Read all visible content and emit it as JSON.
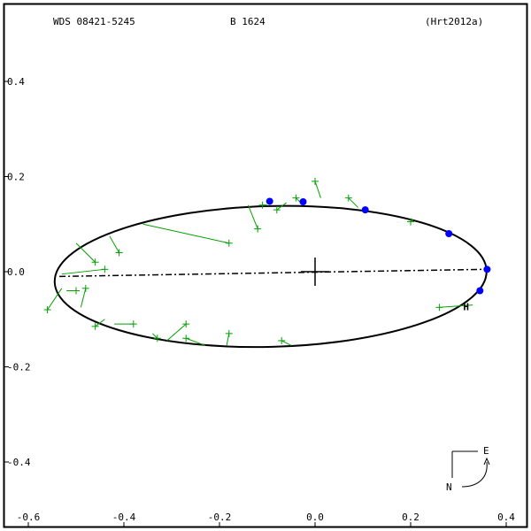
{
  "chart_data": {
    "type": "scatter",
    "title_left": "WDS 08421-5245",
    "title_center": "B  1624",
    "title_right": "(Hrt2012a)",
    "xlim": [
      -0.6,
      0.4
    ],
    "ylim": [
      -0.4,
      0.4
    ],
    "x_ticks": [
      "-0.6",
      "-0.4",
      "-0.2",
      "0.0",
      "0.2",
      "0.4"
    ],
    "x_tick_values": [
      -0.6,
      -0.4,
      -0.2,
      0.0,
      0.2,
      0.4
    ],
    "y_ticks": [
      "0.4",
      "0.2",
      "0.0",
      "-0.2",
      "-0.4"
    ],
    "y_tick_values": [
      0.4,
      0.2,
      0.0,
      -0.2,
      -0.4
    ],
    "orbit_ellipse": {
      "center_x": -0.093,
      "center_y": -0.01,
      "semi_major": 0.452,
      "semi_minor": 0.148,
      "rotation_deg": 1.5
    },
    "line_of_nodes": [
      [
        -0.535,
        -0.01
      ],
      [
        0.355,
        0.005
      ]
    ],
    "primary": [
      0.0,
      0.0
    ],
    "observations": [
      {
        "x": 0.0,
        "y": 0.19,
        "ox": 0.012,
        "oy": 0.155
      },
      {
        "x": 0.07,
        "y": 0.155,
        "ox": 0.09,
        "oy": 0.135
      },
      {
        "x": -0.04,
        "y": 0.155,
        "ox": -0.03,
        "oy": 0.145
      },
      {
        "x": -0.08,
        "y": 0.13,
        "ox": -0.06,
        "oy": 0.145
      },
      {
        "x": -0.12,
        "y": 0.09,
        "ox": -0.14,
        "oy": 0.14
      },
      {
        "x": -0.18,
        "y": 0.06,
        "ox": -0.36,
        "oy": 0.1
      },
      {
        "x": -0.11,
        "y": 0.14,
        "ox": -0.1,
        "oy": 0.14
      },
      {
        "x": 0.2,
        "y": 0.105,
        "ox": 0.205,
        "oy": 0.11
      },
      {
        "x": -0.41,
        "y": 0.04,
        "ox": -0.43,
        "oy": 0.075
      },
      {
        "x": -0.46,
        "y": 0.02,
        "ox": -0.5,
        "oy": 0.06
      },
      {
        "x": -0.44,
        "y": 0.005,
        "ox": -0.53,
        "oy": -0.005
      },
      {
        "x": -0.5,
        "y": -0.04,
        "ox": -0.52,
        "oy": -0.04
      },
      {
        "x": -0.56,
        "y": -0.08,
        "ox": -0.53,
        "oy": -0.035
      },
      {
        "x": -0.48,
        "y": -0.035,
        "ox": -0.49,
        "oy": -0.075
      },
      {
        "x": -0.46,
        "y": -0.115,
        "ox": -0.44,
        "oy": -0.1
      },
      {
        "x": -0.38,
        "y": -0.11,
        "ox": -0.42,
        "oy": -0.11
      },
      {
        "x": -0.33,
        "y": -0.14,
        "ox": -0.34,
        "oy": -0.13
      },
      {
        "x": -0.27,
        "y": -0.11,
        "ox": -0.31,
        "oy": -0.145
      },
      {
        "x": -0.27,
        "y": -0.14,
        "ox": -0.23,
        "oy": -0.155
      },
      {
        "x": -0.18,
        "y": -0.13,
        "ox": -0.185,
        "oy": -0.155
      },
      {
        "x": -0.07,
        "y": -0.145,
        "ox": -0.05,
        "oy": -0.155
      },
      {
        "x": 0.26,
        "y": -0.075,
        "ox": 0.33,
        "oy": -0.07
      },
      {
        "x": 0.36,
        "y": 0.005,
        "ox": 0.357,
        "oy": 0.005
      }
    ],
    "measurements": [
      {
        "x": -0.095,
        "y": 0.148
      },
      {
        "x": -0.025,
        "y": 0.147
      },
      {
        "x": 0.105,
        "y": 0.13
      },
      {
        "x": 0.28,
        "y": 0.08
      },
      {
        "x": 0.36,
        "y": 0.005
      },
      {
        "x": 0.345,
        "y": -0.04
      }
    ],
    "marker_label": "H",
    "marker": {
      "x": 0.31,
      "y": -0.07
    },
    "compass": {
      "east": "E",
      "north": "N"
    },
    "colors": {
      "frame": "#000000",
      "orbit": "#000000",
      "observation": "#00a000",
      "measurement": "#0000ff",
      "marker": "#ff0000"
    }
  }
}
